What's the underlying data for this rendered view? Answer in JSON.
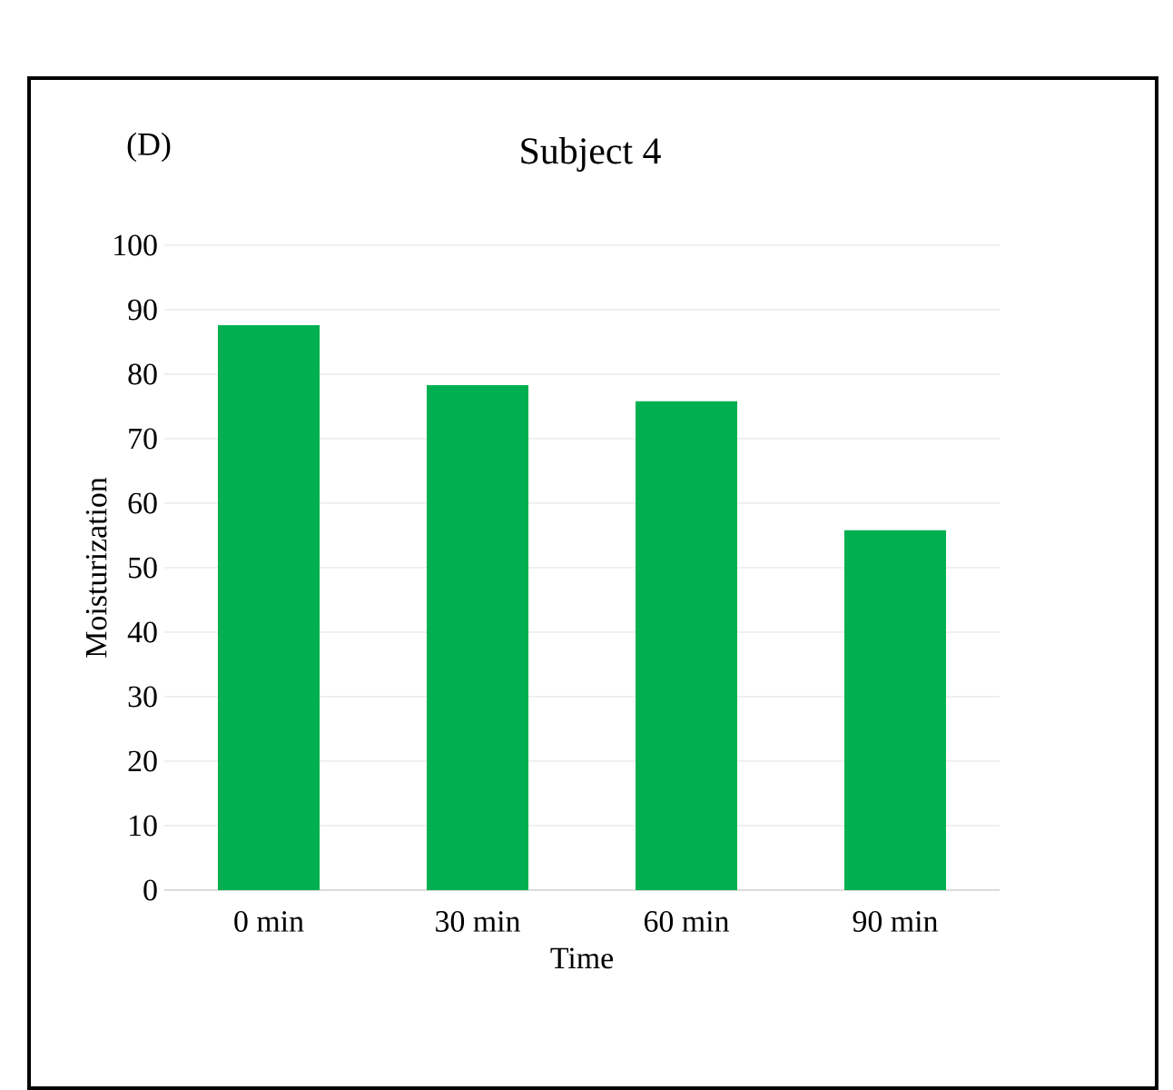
{
  "chart_data": {
    "type": "bar",
    "title": "Subject 4",
    "xlabel": "Time",
    "ylabel": "Moisturization",
    "annotations": [
      "(D)"
    ],
    "categories": [
      "0 min",
      "30 min",
      "60 min",
      "90 min"
    ],
    "values": [
      87.6,
      78.3,
      75.8,
      55.8
    ],
    "color": "#00b050",
    "ylim": [
      0,
      100
    ],
    "yticks": [
      0,
      10,
      20,
      30,
      40,
      50,
      60,
      70,
      80,
      90,
      100
    ],
    "grid": "y"
  }
}
